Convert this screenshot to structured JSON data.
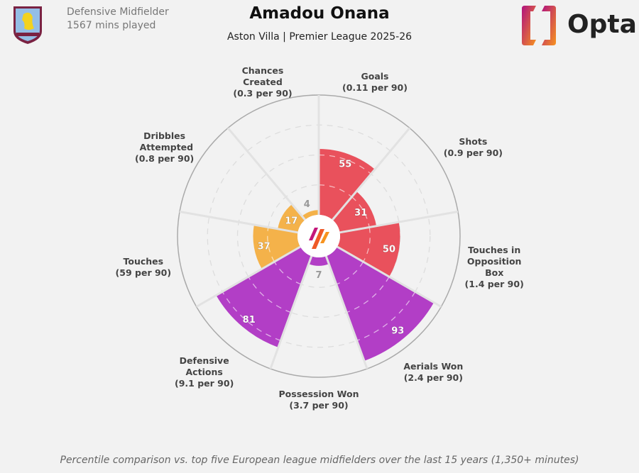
{
  "header": {
    "title": "Amadou Onana",
    "subtitle": "Aston Villa | Premier League 2025-26",
    "position": "Defensive Midfielder",
    "minutes": "1567 mins played",
    "club_crest_text": "ASTON VILLA",
    "brand_logo": "Opta"
  },
  "footnote": "Percentile comparison vs. top five European league midfielders over the last 15 years (1,350+ minutes)",
  "chart_data": {
    "type": "pie",
    "subtype": "polar-bar (pizza)",
    "scale": [
      0,
      100
    ],
    "rings": [
      25,
      50,
      75
    ],
    "colors": {
      "attacking": "#e9515c",
      "defending": "#b23ec6",
      "possession": "#f4b24a"
    },
    "categories": [
      {
        "name": "Goals",
        "per90": "(0.11 per 90)",
        "value": 55,
        "group": "attacking"
      },
      {
        "name": "Shots",
        "per90": "(0.9 per 90)",
        "value": 31,
        "group": "attacking"
      },
      {
        "name": "Touches in Opposition Box",
        "per90": "(1.4 per 90)",
        "value": 50,
        "group": "attacking"
      },
      {
        "name": "Aerials Won",
        "per90": "(2.4 per 90)",
        "value": 93,
        "group": "defending"
      },
      {
        "name": "Possession Won",
        "per90": "(3.7 per 90)",
        "value": 7,
        "group": "defending"
      },
      {
        "name": "Defensive Actions",
        "per90": "(9.1 per 90)",
        "value": 81,
        "group": "defending"
      },
      {
        "name": "Touches",
        "per90": "(59 per 90)",
        "value": 37,
        "group": "possession"
      },
      {
        "name": "Dribbles Attempted",
        "per90": "(0.8 per 90)",
        "value": 17,
        "group": "possession"
      },
      {
        "name": "Chances Created",
        "per90": "(0.3 per 90)",
        "value": 4,
        "group": "possession"
      }
    ]
  }
}
